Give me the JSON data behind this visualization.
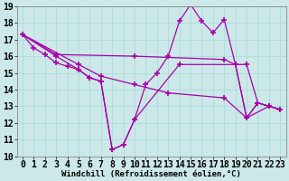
{
  "xlabel": "Windchill (Refroidissement éolien,°C)",
  "background_color": "#cce8e8",
  "line_color": "#aa00aa",
  "grid_color": "#aadddd",
  "xlim": [
    -0.5,
    23.5
  ],
  "ylim": [
    10,
    19
  ],
  "xticks": [
    0,
    1,
    2,
    3,
    4,
    5,
    6,
    7,
    8,
    9,
    10,
    11,
    12,
    13,
    14,
    15,
    16,
    17,
    18,
    19,
    20,
    21,
    22,
    23
  ],
  "yticks": [
    10,
    11,
    12,
    13,
    14,
    15,
    16,
    17,
    18,
    19
  ],
  "lines": [
    {
      "x": [
        0,
        1,
        2,
        3,
        4,
        5,
        6,
        7,
        8,
        9,
        10,
        11,
        12,
        13,
        14,
        15,
        16,
        17,
        18,
        19,
        20,
        21,
        22,
        23
      ],
      "y": [
        17.3,
        16.5,
        16.1,
        15.6,
        15.4,
        15.2,
        14.7,
        14.5,
        10.4,
        10.7,
        12.2,
        14.3,
        15.0,
        16.0,
        18.1,
        19.1,
        18.1,
        17.4,
        18.2,
        15.5,
        12.3,
        13.2,
        13.0,
        12.8
      ]
    },
    {
      "x": [
        0,
        3,
        10,
        18,
        19,
        20,
        21,
        22,
        23
      ],
      "y": [
        17.3,
        16.1,
        16.0,
        15.8,
        15.5,
        15.5,
        13.2,
        13.0,
        12.8
      ]
    },
    {
      "x": [
        0,
        5,
        7,
        10,
        13,
        18,
        20,
        22,
        23
      ],
      "y": [
        17.3,
        15.5,
        14.8,
        14.3,
        13.8,
        13.5,
        12.3,
        13.0,
        12.8
      ]
    },
    {
      "x": [
        0,
        3,
        5,
        6,
        7,
        8,
        9,
        10,
        14,
        19,
        20,
        21,
        22,
        23
      ],
      "y": [
        17.3,
        16.0,
        15.2,
        14.7,
        14.5,
        10.4,
        10.7,
        12.2,
        15.5,
        15.5,
        12.3,
        13.2,
        13.0,
        12.8
      ]
    }
  ],
  "marker": "+",
  "markersize": 4,
  "markeredgewidth": 1.2,
  "linewidth": 0.9,
  "fontsize_xlabel": 6.5,
  "fontsize_ticks": 7
}
